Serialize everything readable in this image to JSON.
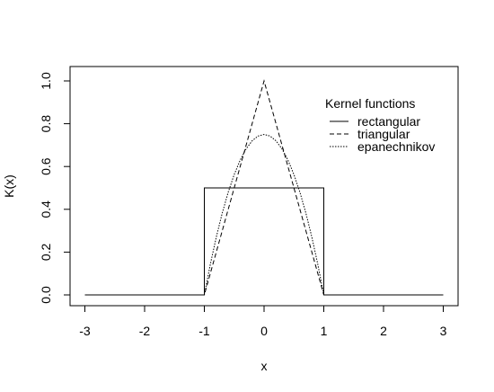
{
  "chart_data": {
    "type": "line",
    "title": "",
    "xlabel": "x",
    "ylabel": "K(x)",
    "xlim": [
      -3,
      3
    ],
    "ylim": [
      0,
      1
    ],
    "x_ticks": [
      -3,
      -2,
      -1,
      0,
      1,
      2,
      3
    ],
    "x_tick_labels": [
      "-3",
      "-2",
      "-1",
      "0",
      "1",
      "2",
      "3"
    ],
    "y_ticks": [
      0,
      0.2,
      0.4,
      0.6,
      0.8,
      1
    ],
    "y_tick_labels": [
      "0.0",
      "0.2",
      "0.4",
      "0.6",
      "0.8",
      "1.0"
    ],
    "grid": false,
    "legend": {
      "title": "Kernel functions",
      "position": "top-right",
      "entries": [
        "rectangular",
        "triangular",
        "epanechnikov"
      ]
    },
    "series": [
      {
        "name": "rectangular",
        "style": "solid",
        "x": [
          -3,
          -1,
          -1,
          1,
          1,
          3
        ],
        "y": [
          0,
          0,
          0.5,
          0.5,
          0,
          0
        ]
      },
      {
        "name": "triangular",
        "style": "dashed",
        "x": [
          -3,
          -1,
          0,
          1,
          3
        ],
        "y": [
          0,
          0,
          1,
          0,
          0
        ]
      },
      {
        "name": "epanechnikov",
        "style": "dotted",
        "x": [
          -1,
          -0.9,
          -0.8,
          -0.7,
          -0.6,
          -0.5,
          -0.4,
          -0.3,
          -0.2,
          -0.1,
          0,
          0.1,
          0.2,
          0.3,
          0.4,
          0.5,
          0.6,
          0.7,
          0.8,
          0.9,
          1
        ],
        "y": [
          0,
          0.1425,
          0.27,
          0.3825,
          0.48,
          0.5625,
          0.63,
          0.6825,
          0.72,
          0.7425,
          0.75,
          0.7425,
          0.72,
          0.6825,
          0.63,
          0.5625,
          0.48,
          0.3825,
          0.27,
          0.1425,
          0
        ]
      }
    ],
    "colors": {
      "line": "#000000",
      "background": "#ffffff"
    }
  }
}
